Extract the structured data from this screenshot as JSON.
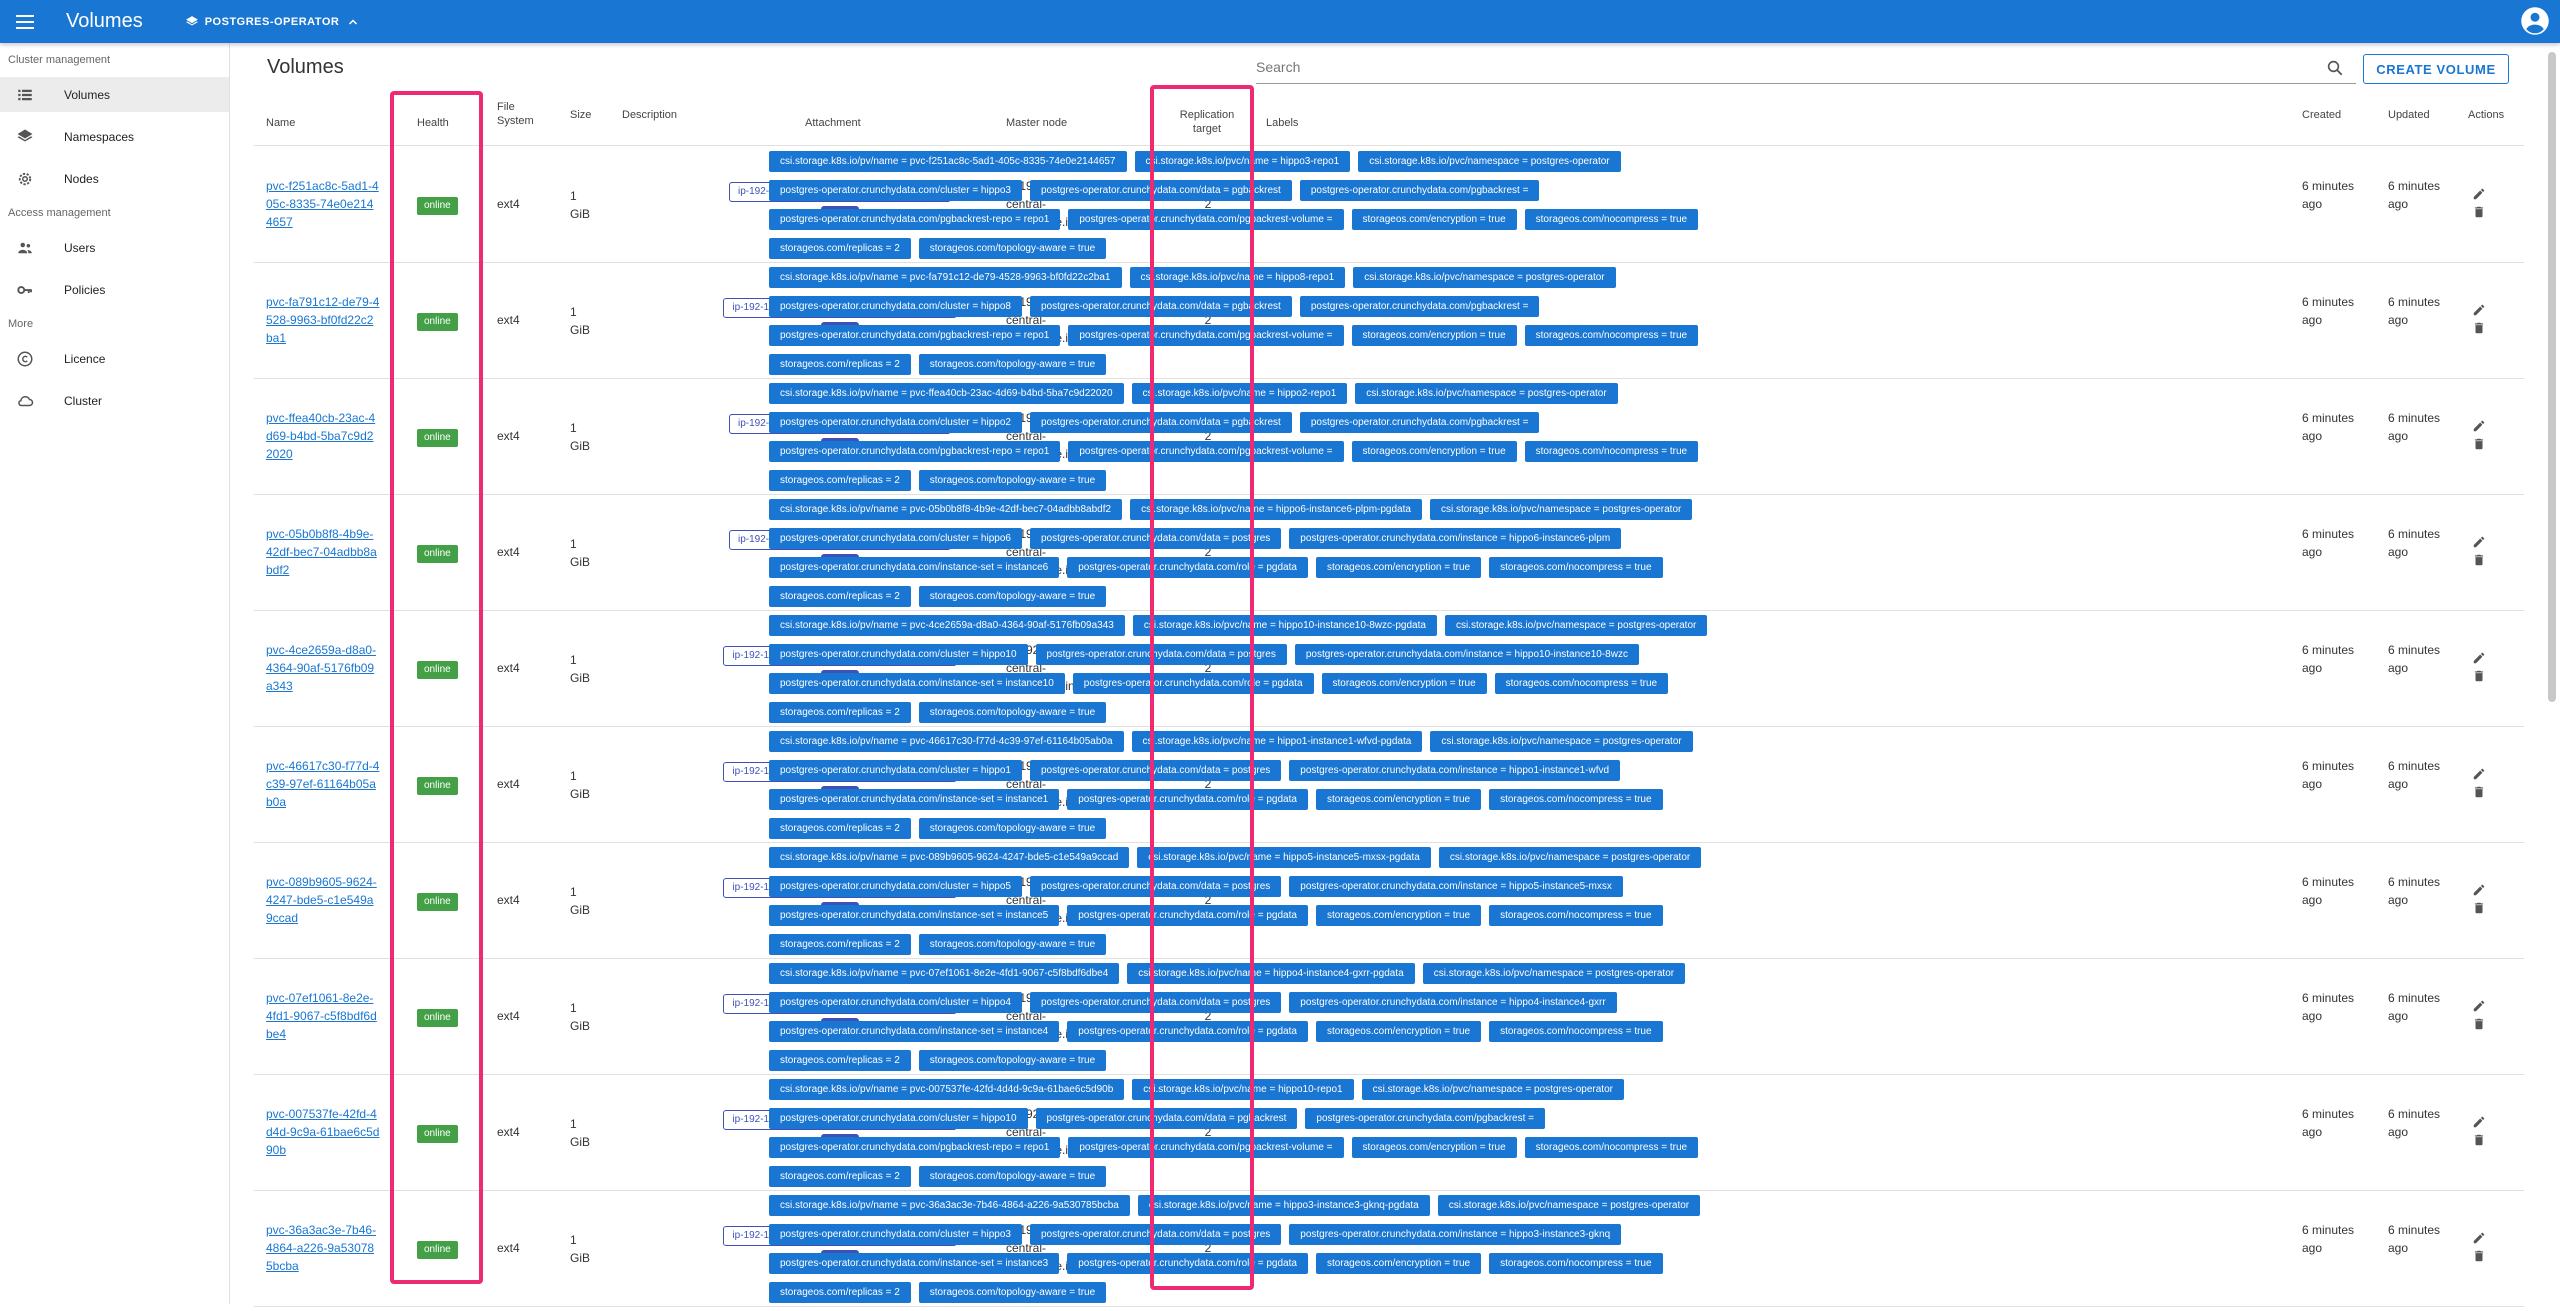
{
  "app": {
    "title": "Volumes",
    "namespace": "POSTGRES-OPERATOR"
  },
  "sidebar": {
    "sections": [
      {
        "title": "Cluster management",
        "items": [
          {
            "label": "Volumes",
            "icon": "list-icon",
            "active": true
          },
          {
            "label": "Namespaces",
            "icon": "layers-icon"
          },
          {
            "label": "Nodes",
            "icon": "gear-icon"
          }
        ]
      },
      {
        "title": "Access management",
        "items": [
          {
            "label": "Users",
            "icon": "people-icon"
          },
          {
            "label": "Policies",
            "icon": "key-icon"
          }
        ]
      },
      {
        "title": "More",
        "items": [
          {
            "label": "Licence",
            "icon": "copyright-icon"
          },
          {
            "label": "Cluster",
            "icon": "cloud-icon"
          }
        ]
      }
    ]
  },
  "main": {
    "title": "Volumes",
    "search_placeholder": "Search",
    "create_label": "CREATE VOLUME"
  },
  "table": {
    "headers": {
      "name": "Name",
      "health": "Health",
      "fs": "File System",
      "size": "Size",
      "description": "Description",
      "attachment": "Attachment",
      "master": "Master node",
      "replication": "Replication target",
      "labels": "Labels",
      "created": "Created",
      "updated": "Updated",
      "actions": "Actions"
    },
    "rows": [
      {
        "name": "pvc-f251ac8c-5ad1-405c-8335-74e0e2144657",
        "health": "online",
        "fs": "ext4",
        "size": "1 GiB",
        "attachment": "ip-192-168-9-68.eu-central-1.compute.internal",
        "att_type": "host",
        "master": "ip-192-168-9-68.eu-central-1.compute.internal",
        "replication": "2",
        "created": "6 minutes ago",
        "updated": "6 minutes ago",
        "labels": [
          "csi.storage.k8s.io/pv/name = pvc-f251ac8c-5ad1-405c-8335-74e0e2144657",
          "csi.storage.k8s.io/pvc/name = hippo3-repo1",
          "csi.storage.k8s.io/pvc/namespace = postgres-operator",
          "postgres-operator.crunchydata.com/cluster = hippo3",
          "postgres-operator.crunchydata.com/data = pgbackrest",
          "postgres-operator.crunchydata.com/pgbackrest =",
          "postgres-operator.crunchydata.com/pgbackrest-repo = repo1",
          "postgres-operator.crunchydata.com/pgbackrest-volume =",
          "storageos.com/encryption = true",
          "storageos.com/nocompress = true",
          "storageos.com/replicas = 2",
          "storageos.com/topology-aware = true"
        ]
      },
      {
        "name": "pvc-fa791c12-de79-4528-9963-bf0fd22c2ba1",
        "health": "online",
        "fs": "ext4",
        "size": "1 GiB",
        "attachment": "ip-192-168-67-147.eu-central-1.compute.internal",
        "att_type": "host",
        "master": "ip-192-168-67-147.eu-central-1.compute.internal",
        "replication": "2",
        "created": "6 minutes ago",
        "updated": "6 minutes ago",
        "labels": [
          "csi.storage.k8s.io/pv/name = pvc-fa791c12-de79-4528-9963-bf0fd22c2ba1",
          "csi.storage.k8s.io/pvc/name = hippo8-repo1",
          "csi.storage.k8s.io/pvc/namespace = postgres-operator",
          "postgres-operator.crunchydata.com/cluster = hippo8",
          "postgres-operator.crunchydata.com/data = pgbackrest",
          "postgres-operator.crunchydata.com/pgbackrest =",
          "postgres-operator.crunchydata.com/pgbackrest-repo = repo1",
          "postgres-operator.crunchydata.com/pgbackrest-volume =",
          "storageos.com/encryption = true",
          "storageos.com/nocompress = true",
          "storageos.com/replicas = 2",
          "storageos.com/topology-aware = true"
        ]
      },
      {
        "name": "pvc-ffea40cb-23ac-4d69-b4bd-5ba7c9d22020",
        "health": "online",
        "fs": "ext4",
        "size": "1 GiB",
        "attachment": "ip-192-168-9-68.eu-central-1.compute.internal",
        "att_type": "host",
        "master": "ip-192-168-67-147.eu-central-1.compute.internal",
        "replication": "2",
        "created": "6 minutes ago",
        "updated": "6 minutes ago",
        "labels": [
          "csi.storage.k8s.io/pv/name = pvc-ffea40cb-23ac-4d69-b4bd-5ba7c9d22020",
          "csi.storage.k8s.io/pvc/name = hippo2-repo1",
          "csi.storage.k8s.io/pvc/namespace = postgres-operator",
          "postgres-operator.crunchydata.com/cluster = hippo2",
          "postgres-operator.crunchydata.com/data = pgbackrest",
          "postgres-operator.crunchydata.com/pgbackrest =",
          "postgres-operator.crunchydata.com/pgbackrest-repo = repo1",
          "postgres-operator.crunchydata.com/pgbackrest-volume =",
          "storageos.com/encryption = true",
          "storageos.com/nocompress = true",
          "storageos.com/replicas = 2",
          "storageos.com/topology-aware = true"
        ]
      },
      {
        "name": "pvc-05b0b8f8-4b9e-42df-bec7-04adbb8abdf2",
        "health": "online",
        "fs": "ext4",
        "size": "1 GiB",
        "attachment": "ip-192-168-9-68.eu-central-1.compute.internal",
        "att_type": "host",
        "master": "ip-192-168-9-68.eu-central-1.compute.internal",
        "replication": "2",
        "created": "6 minutes ago",
        "updated": "6 minutes ago",
        "labels": [
          "csi.storage.k8s.io/pv/name = pvc-05b0b8f8-4b9e-42df-bec7-04adbb8abdf2",
          "csi.storage.k8s.io/pvc/name = hippo6-instance6-plpm-pgdata",
          "csi.storage.k8s.io/pvc/namespace = postgres-operator",
          "postgres-operator.crunchydata.com/cluster = hippo6",
          "postgres-operator.crunchydata.com/data = postgres",
          "postgres-operator.crunchydata.com/instance = hippo6-instance6-plpm",
          "postgres-operator.crunchydata.com/instance-set = instance6",
          "postgres-operator.crunchydata.com/role = pgdata",
          "storageos.com/encryption = true",
          "storageos.com/nocompress = true",
          "storageos.com/replicas = 2",
          "storageos.com/topology-aware = true"
        ]
      },
      {
        "name": "pvc-4ce2659a-d8a0-4364-90af-5176fb09a343",
        "health": "online",
        "fs": "ext4",
        "size": "1 GiB",
        "attachment": "ip-192-168-55-150.eu-central-1.compute.internal",
        "att_type": "host",
        "master": "ip-192-168-55-150.eu-central-1.compute.internal",
        "replication": "2",
        "created": "6 minutes ago",
        "updated": "6 minutes ago",
        "labels": [
          "csi.storage.k8s.io/pv/name = pvc-4ce2659a-d8a0-4364-90af-5176fb09a343",
          "csi.storage.k8s.io/pvc/name = hippo10-instance10-8wzc-pgdata",
          "csi.storage.k8s.io/pvc/namespace = postgres-operator",
          "postgres-operator.crunchydata.com/cluster = hippo10",
          "postgres-operator.crunchydata.com/data = postgres",
          "postgres-operator.crunchydata.com/instance = hippo10-instance10-8wzc",
          "postgres-operator.crunchydata.com/instance-set = instance10",
          "postgres-operator.crunchydata.com/role = pgdata",
          "storageos.com/encryption = true",
          "storageos.com/nocompress = true",
          "storageos.com/replicas = 2",
          "storageos.com/topology-aware = true"
        ]
      },
      {
        "name": "pvc-46617c30-f77d-4c39-97ef-61164b05ab0a",
        "health": "online",
        "fs": "ext4",
        "size": "1 GiB",
        "attachment": "ip-192-168-67-147.eu-central-1.compute.internal",
        "att_type": "host",
        "master": "ip-192-168-67-147.eu-central-1.compute.internal",
        "replication": "2",
        "created": "6 minutes ago",
        "updated": "6 minutes ago",
        "labels": [
          "csi.storage.k8s.io/pv/name = pvc-46617c30-f77d-4c39-97ef-61164b05ab0a",
          "csi.storage.k8s.io/pvc/name = hippo1-instance1-wfvd-pgdata",
          "csi.storage.k8s.io/pvc/namespace = postgres-operator",
          "postgres-operator.crunchydata.com/cluster = hippo1",
          "postgres-operator.crunchydata.com/data = postgres",
          "postgres-operator.crunchydata.com/instance = hippo1-instance1-wfvd",
          "postgres-operator.crunchydata.com/instance-set = instance1",
          "postgres-operator.crunchydata.com/role = pgdata",
          "storageos.com/encryption = true",
          "storageos.com/nocompress = true",
          "storageos.com/replicas = 2",
          "storageos.com/topology-aware = true"
        ]
      },
      {
        "name": "pvc-089b9605-9624-4247-bde5-c1e549a9ccad",
        "health": "online",
        "fs": "ext4",
        "size": "1 GiB",
        "attachment": "ip-192-168-55-150.eu-central-1.compute.internal",
        "att_type": "host",
        "master": "ip-192-168-55-150.eu-central-1.compute.internal",
        "replication": "2",
        "created": "6 minutes ago",
        "updated": "6 minutes ago",
        "labels": [
          "csi.storage.k8s.io/pv/name = pvc-089b9605-9624-4247-bde5-c1e549a9ccad",
          "csi.storage.k8s.io/pvc/name = hippo5-instance5-mxsx-pgdata",
          "csi.storage.k8s.io/pvc/namespace = postgres-operator",
          "postgres-operator.crunchydata.com/cluster = hippo5",
          "postgres-operator.crunchydata.com/data = postgres",
          "postgres-operator.crunchydata.com/instance = hippo5-instance5-mxsx",
          "postgres-operator.crunchydata.com/instance-set = instance5",
          "postgres-operator.crunchydata.com/role = pgdata",
          "storageos.com/encryption = true",
          "storageos.com/nocompress = true",
          "storageos.com/replicas = 2",
          "storageos.com/topology-aware = true"
        ]
      },
      {
        "name": "pvc-07ef1061-8e2e-4fd1-9067-c5f8bdf6dbe4",
        "health": "online",
        "fs": "ext4",
        "size": "1 GiB",
        "attachment": "ip-192-168-67-147.eu-central-1.compute.internal",
        "att_type": "host",
        "master": "ip-192-168-67-147.eu-central-1.compute.internal",
        "replication": "2",
        "created": "6 minutes ago",
        "updated": "6 minutes ago",
        "labels": [
          "csi.storage.k8s.io/pv/name = pvc-07ef1061-8e2e-4fd1-9067-c5f8bdf6dbe4",
          "csi.storage.k8s.io/pvc/name = hippo4-instance4-gxrr-pgdata",
          "csi.storage.k8s.io/pvc/namespace = postgres-operator",
          "postgres-operator.crunchydata.com/cluster = hippo4",
          "postgres-operator.crunchydata.com/data = postgres",
          "postgres-operator.crunchydata.com/instance = hippo4-instance4-gxrr",
          "postgres-operator.crunchydata.com/instance-set = instance4",
          "postgres-operator.crunchydata.com/role = pgdata",
          "storageos.com/encryption = true",
          "storageos.com/nocompress = true",
          "storageos.com/replicas = 2",
          "storageos.com/topology-aware = true"
        ]
      },
      {
        "name": "pvc-007537fe-42fd-4d4d-9c9a-61bae6c5d90b",
        "health": "online",
        "fs": "ext4",
        "size": "1 GiB",
        "attachment": "ip-192-168-55-150.eu-central-1.compute.internal",
        "att_type": "host",
        "master": "ip-192-168-67-147.eu-central-1.compute.internal",
        "replication": "2",
        "created": "6 minutes ago",
        "updated": "6 minutes ago",
        "labels": [
          "csi.storage.k8s.io/pv/name = pvc-007537fe-42fd-4d4d-9c9a-61bae6c5d90b",
          "csi.storage.k8s.io/pvc/name = hippo10-repo1",
          "csi.storage.k8s.io/pvc/namespace = postgres-operator",
          "postgres-operator.crunchydata.com/cluster = hippo10",
          "postgres-operator.crunchydata.com/data = pgbackrest",
          "postgres-operator.crunchydata.com/pgbackrest =",
          "postgres-operator.crunchydata.com/pgbackrest-repo = repo1",
          "postgres-operator.crunchydata.com/pgbackrest-volume =",
          "storageos.com/encryption = true",
          "storageos.com/nocompress = true",
          "storageos.com/replicas = 2",
          "storageos.com/topology-aware = true"
        ]
      },
      {
        "name": "pvc-36a3ac3e-7b46-4864-a226-9a530785bcba",
        "health": "online",
        "fs": "ext4",
        "size": "1 GiB",
        "attachment": "ip-192-168-67-147.eu-central-1.compute.internal",
        "att_type": "host",
        "master": "ip-192-168-67-147.eu-central-1.compute.internal",
        "replication": "2",
        "created": "6 minutes ago",
        "updated": "6 minutes ago",
        "labels": [
          "csi.storage.k8s.io/pv/name = pvc-36a3ac3e-7b46-4864-a226-9a530785bcba",
          "csi.storage.k8s.io/pvc/name = hippo3-instance3-gknq-pgdata",
          "csi.storage.k8s.io/pvc/namespace = postgres-operator",
          "postgres-operator.crunchydata.com/cluster = hippo3",
          "postgres-operator.crunchydata.com/data = postgres",
          "postgres-operator.crunchydata.com/instance = hippo3-instance3-gknq",
          "postgres-operator.crunchydata.com/instance-set = instance3",
          "postgres-operator.crunchydata.com/role = pgdata",
          "storageos.com/encryption = true",
          "storageos.com/nocompress = true",
          "storageos.com/replicas = 2",
          "storageos.com/topology-aware = true"
        ]
      }
    ]
  },
  "colors": {
    "primary": "#1976d2",
    "online": "#43a047",
    "attachment": "#3f51b5",
    "highlight": "#ee2a72"
  }
}
